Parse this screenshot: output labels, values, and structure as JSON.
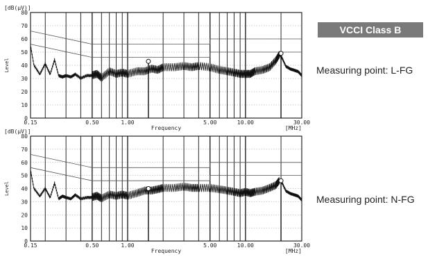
{
  "badge": {
    "label": "VCCI Class B"
  },
  "chart_data": [
    {
      "type": "line",
      "unit_label": "[dB(μV)]",
      "ylabel": "Level",
      "xlabel": "Frequency",
      "x_unit": "[MHz]",
      "x_scale": "log",
      "xlim": [
        0.15,
        30.0
      ],
      "ylim": [
        0,
        80
      ],
      "y_ticks": [
        "0",
        "10",
        "20",
        "30",
        "40",
        "50",
        "60",
        "70",
        "80"
      ],
      "x_ticks": [
        "0.15",
        "0.50",
        "1.00",
        "5.00",
        "10.00",
        "30.00"
      ],
      "grid": true,
      "caption": "Measuring point: L-FG",
      "limit_lines": [
        {
          "x": [
            0.15,
            0.5,
            0.5,
            5.0,
            5.0,
            30.0
          ],
          "y": [
            66,
            56,
            56,
            56,
            60,
            60
          ]
        },
        {
          "x": [
            0.15,
            0.5,
            0.5,
            5.0,
            5.0,
            30.0
          ],
          "y": [
            56,
            46,
            46,
            46,
            50,
            50
          ]
        }
      ],
      "series": [
        {
          "x": [
            0.15,
            0.16,
            0.18,
            0.2,
            0.22,
            0.24,
            0.26,
            0.28,
            0.3,
            0.33,
            0.36,
            0.4,
            0.45,
            0.5,
            0.55,
            0.6,
            0.7,
            0.8,
            0.9,
            1.0,
            1.2,
            1.4,
            1.6,
            1.8,
            2.0,
            2.5,
            3.0,
            3.5,
            4.0,
            5.0,
            6.0,
            7.0,
            8.0,
            9.0,
            10.0,
            11.0,
            12.0,
            14.0,
            16.0,
            18.0,
            19.5,
            20.5,
            22.0,
            24.0,
            26.0,
            28.0,
            30.0
          ],
          "y": [
            55,
            40,
            33,
            41,
            33,
            44,
            32,
            31,
            32,
            31,
            33,
            30,
            32,
            32,
            33,
            30,
            35,
            33,
            34,
            33,
            35,
            35,
            37,
            36,
            38,
            38,
            39,
            38,
            39,
            38,
            36,
            35,
            34,
            33,
            33,
            33,
            35,
            36,
            38,
            43,
            48,
            45,
            39,
            37,
            36,
            35,
            32
          ]
        }
      ],
      "markers": [
        {
          "x": 1.5,
          "y": 43
        },
        {
          "x": 20.0,
          "y": 49
        }
      ]
    },
    {
      "type": "line",
      "unit_label": "[dB(μV)]",
      "ylabel": "Level",
      "xlabel": "Frequency",
      "x_unit": "[MHz]",
      "x_scale": "log",
      "xlim": [
        0.15,
        30.0
      ],
      "ylim": [
        0,
        80
      ],
      "y_ticks": [
        "0",
        "10",
        "20",
        "30",
        "40",
        "50",
        "60",
        "70",
        "80"
      ],
      "x_ticks": [
        "0.15",
        "0.50",
        "1.00",
        "5.00",
        "10.00",
        "30.00"
      ],
      "grid": true,
      "caption": "Measuring point: N-FG",
      "limit_lines": [
        {
          "x": [
            0.15,
            0.5,
            0.5,
            5.0,
            5.0,
            30.0
          ],
          "y": [
            66,
            56,
            56,
            56,
            60,
            60
          ]
        },
        {
          "x": [
            0.15,
            0.5,
            0.5,
            5.0,
            5.0,
            30.0
          ],
          "y": [
            56,
            46,
            46,
            46,
            50,
            50
          ]
        }
      ],
      "series": [
        {
          "x": [
            0.15,
            0.16,
            0.18,
            0.2,
            0.22,
            0.24,
            0.26,
            0.28,
            0.3,
            0.33,
            0.36,
            0.4,
            0.45,
            0.5,
            0.55,
            0.6,
            0.7,
            0.8,
            0.9,
            1.0,
            1.2,
            1.4,
            1.6,
            1.8,
            2.0,
            2.5,
            3.0,
            3.5,
            4.0,
            5.0,
            6.0,
            7.0,
            8.0,
            9.0,
            10.0,
            11.0,
            12.0,
            14.0,
            16.0,
            18.0,
            19.5,
            20.5,
            22.0,
            24.0,
            26.0,
            28.0,
            30.0
          ],
          "y": [
            54,
            40,
            34,
            40,
            33,
            44,
            32,
            34,
            33,
            32,
            35,
            32,
            33,
            33,
            34,
            32,
            35,
            34,
            35,
            34,
            36,
            38,
            38,
            39,
            40,
            40,
            41,
            40,
            40,
            40,
            39,
            38,
            37,
            36,
            37,
            36,
            37,
            38,
            40,
            42,
            46,
            44,
            38,
            36,
            35,
            34,
            31
          ]
        }
      ],
      "markers": [
        {
          "x": 1.5,
          "y": 40
        },
        {
          "x": 20.0,
          "y": 46
        }
      ]
    }
  ]
}
